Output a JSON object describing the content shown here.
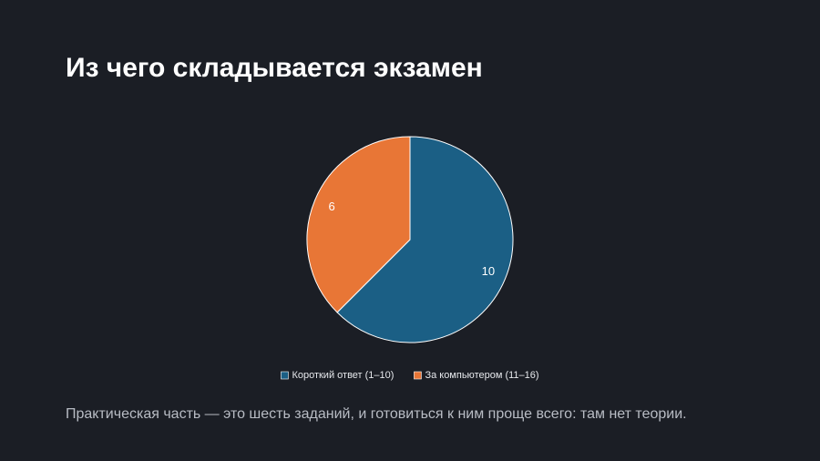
{
  "slide": {
    "title": "Из чего складывается экзамен",
    "caption": "Практическая часть — это шесть заданий, и готовиться к ним проще всего: там нет теории."
  },
  "chart_data": {
    "type": "pie",
    "categories": [
      "Короткий ответ (1–10)",
      "За компьютером (11–16)"
    ],
    "values": [
      10,
      6
    ],
    "colors": [
      "#1b5f85",
      "#e87636"
    ],
    "legend": "bottom"
  }
}
